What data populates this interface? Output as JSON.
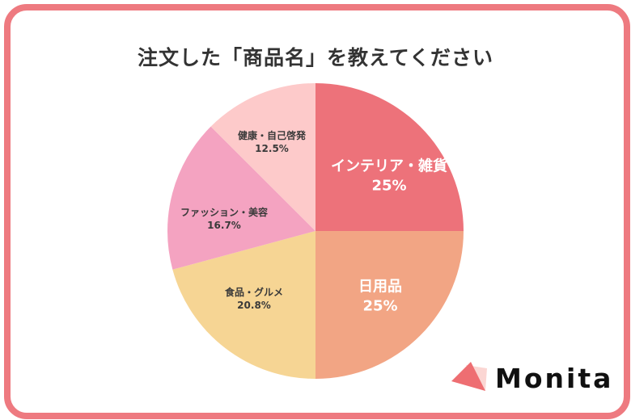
{
  "title": "注文した「商品名」を教えてください",
  "brand": {
    "name": "Monita",
    "accent": "#ee7a80"
  },
  "chart_data": {
    "type": "pie",
    "title": "注文した「商品名」を教えてください",
    "start_angle": "12 o'clock, clockwise",
    "slices": [
      {
        "label": "インテリア・雑貨",
        "value": 25,
        "display": "25%",
        "color": "#ed727a"
      },
      {
        "label": "日用品",
        "value": 25,
        "display": "25%",
        "color": "#f2a584"
      },
      {
        "label": "食品・グルメ",
        "value": 20.8,
        "display": "20.8%",
        "color": "#f6d594"
      },
      {
        "label": "ファッション・美容",
        "value": 16.7,
        "display": "16.7%",
        "color": "#f4a3c1"
      },
      {
        "label": "健康・自己啓発",
        "value": 12.5,
        "display": "12.5%",
        "color": "#fdcaca"
      }
    ],
    "legend": "none (labels inside slices)"
  }
}
